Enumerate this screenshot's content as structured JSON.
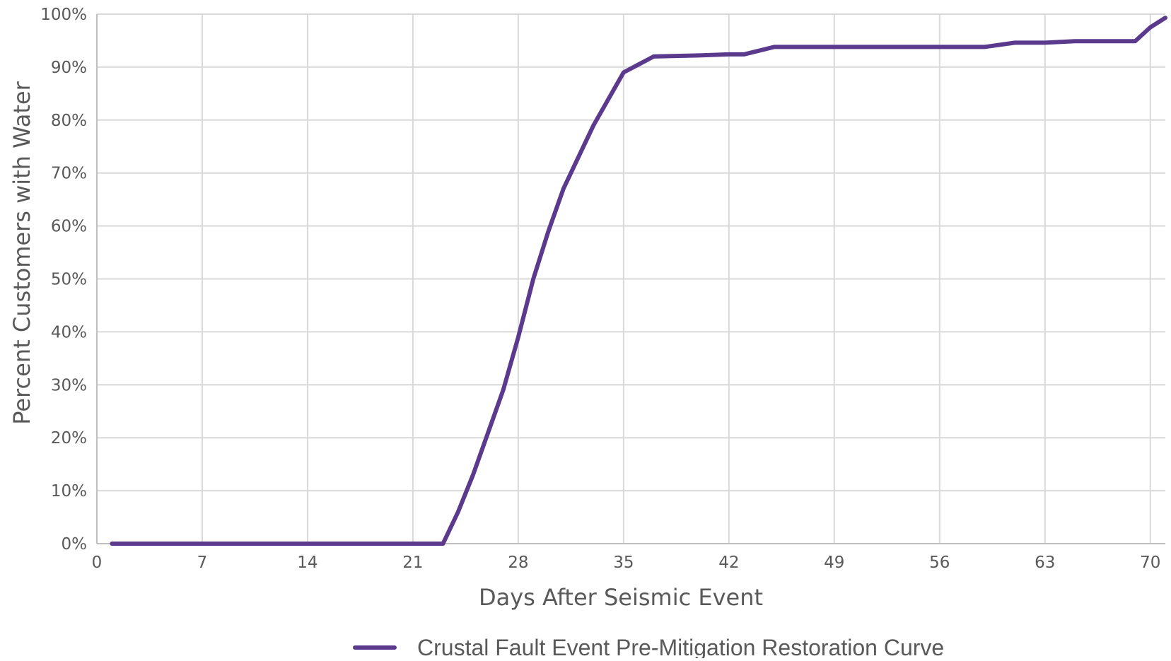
{
  "chart_data": {
    "type": "line",
    "xlabel": "Days After Seismic Event",
    "ylabel": "Percent Customers with Water",
    "xlim": [
      0,
      71
    ],
    "ylim": [
      0,
      100
    ],
    "x_ticks": [
      0,
      7,
      14,
      21,
      28,
      35,
      42,
      49,
      56,
      63,
      70
    ],
    "x_tick_labels": [
      "0",
      "7",
      "14",
      "21",
      "28",
      "35",
      "42",
      "49",
      "56",
      "63",
      "70"
    ],
    "y_ticks": [
      0,
      10,
      20,
      30,
      40,
      50,
      60,
      70,
      80,
      90,
      100
    ],
    "y_tick_labels": [
      "0%",
      "10%",
      "20%",
      "30%",
      "40%",
      "50%",
      "60%",
      "70%",
      "80%",
      "90%",
      "100%"
    ],
    "grid": true,
    "legend_position": "bottom",
    "colors": {
      "series": "#5b3a8e",
      "grid": "#d9d9d9",
      "axis": "#bfbfbf",
      "text": "#595959"
    },
    "series": [
      {
        "name": "Crustal Fault Event Pre-Mitigation Restoration Curve",
        "x": [
          1,
          23,
          24,
          25,
          26,
          27,
          28,
          29,
          30,
          31,
          32,
          33,
          34,
          35,
          36,
          37,
          40,
          42,
          43,
          45,
          49,
          56,
          59,
          61,
          63,
          65,
          67,
          69,
          70,
          71
        ],
        "y": [
          0,
          0,
          6,
          13,
          21,
          29,
          39,
          50,
          59,
          67,
          73,
          79,
          84,
          89,
          90.5,
          92,
          92.2,
          92.4,
          92.4,
          93.8,
          93.8,
          93.8,
          93.8,
          94.6,
          94.6,
          94.9,
          94.9,
          94.9,
          97.5,
          99.3
        ]
      }
    ]
  }
}
